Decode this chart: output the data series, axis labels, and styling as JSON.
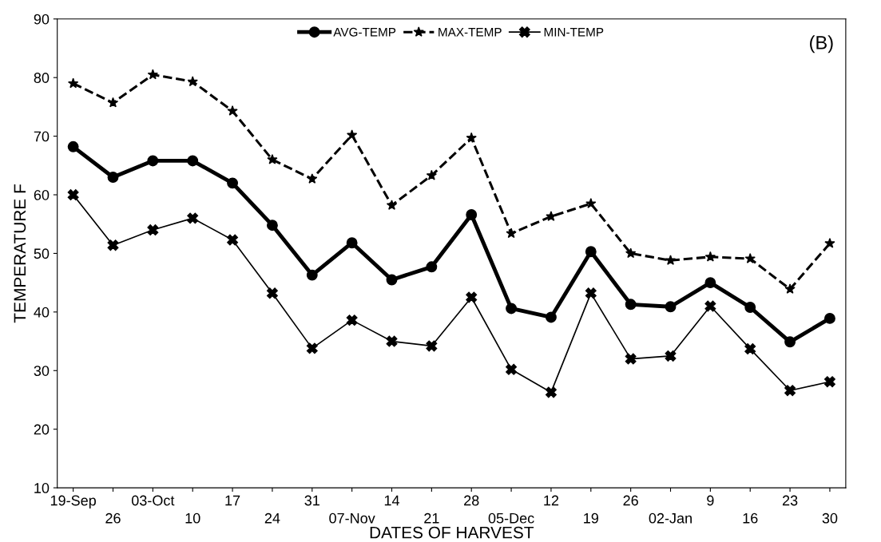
{
  "chart_data": {
    "type": "line",
    "xlabel": "DATES OF HARVEST",
    "ylabel": "TEMPERATURE F",
    "categories": [
      "19-Sep",
      "26",
      "03-Oct",
      "10",
      "17",
      "24",
      "31",
      "07-Nov",
      "14",
      "21",
      "28",
      "05-Dec",
      "12",
      "19",
      "26",
      "02-Jan",
      "9",
      "16",
      "23",
      "30"
    ],
    "series": [
      {
        "name": "AVG-TEMP",
        "color": "#000000",
        "marker": "circle",
        "line_style": "solid",
        "values": [
          68.2,
          63,
          65.8,
          65.8,
          62,
          54.8,
          46.3,
          51.8,
          45.5,
          47.7,
          56.6,
          40.6,
          39.1,
          50.3,
          41.3,
          40.9,
          45,
          40.8,
          34.9,
          38.9
        ]
      },
      {
        "name": "MAX-TEMP",
        "color": "#000000",
        "marker": "star",
        "line_style": "dashed",
        "values": [
          79,
          75.7,
          80.5,
          79.3,
          74.3,
          66,
          62.7,
          70.2,
          58.2,
          63.3,
          69.7,
          53.4,
          56.3,
          58.5,
          50,
          48.8,
          49.4,
          49.1,
          43.9,
          51.7
        ]
      },
      {
        "name": "MIN-TEMP",
        "color": "#000000",
        "marker": "cross",
        "line_style": "solid",
        "values": [
          60,
          51.4,
          54,
          56,
          52.3,
          43.2,
          33.8,
          38.6,
          35,
          34.2,
          42.5,
          30.2,
          26.3,
          43.2,
          32,
          32.5,
          41,
          33.7,
          26.6,
          28.1
        ]
      }
    ],
    "ylim": [
      10,
      90
    ],
    "yticks": [
      10,
      20,
      30,
      40,
      50,
      60,
      70,
      80,
      90
    ],
    "grid": false,
    "legend": "top",
    "annotations": [
      "(B)"
    ]
  }
}
